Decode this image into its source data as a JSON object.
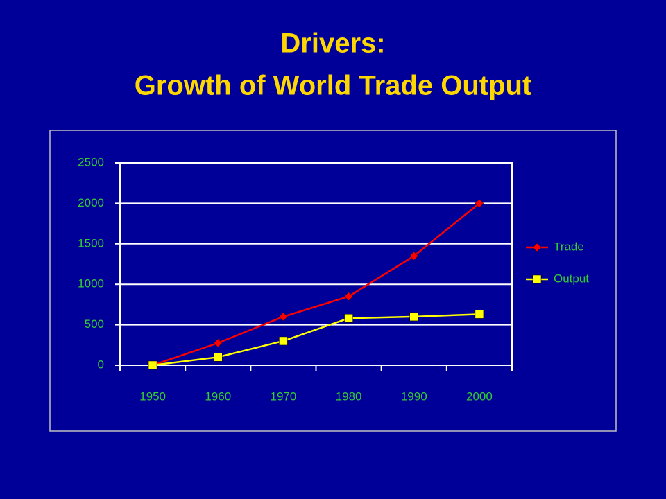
{
  "chart_data": {
    "type": "line",
    "title": [
      "Drivers:",
      "Growth of World Trade Output"
    ],
    "categories": [
      "1950",
      "1960",
      "1970",
      "1980",
      "1990",
      "2000"
    ],
    "series": [
      {
        "name": "Trade",
        "color": "#ff0000",
        "marker": "diamond",
        "values": [
          0,
          275,
          600,
          850,
          1350,
          2000
        ]
      },
      {
        "name": "Output",
        "color": "#ffff00",
        "marker": "square",
        "values": [
          0,
          100,
          300,
          580,
          600,
          630
        ]
      }
    ],
    "ylim": [
      0,
      2500
    ],
    "yticks": [
      0,
      500,
      1000,
      1500,
      2000,
      2500
    ],
    "grid": true,
    "legend": "right"
  }
}
